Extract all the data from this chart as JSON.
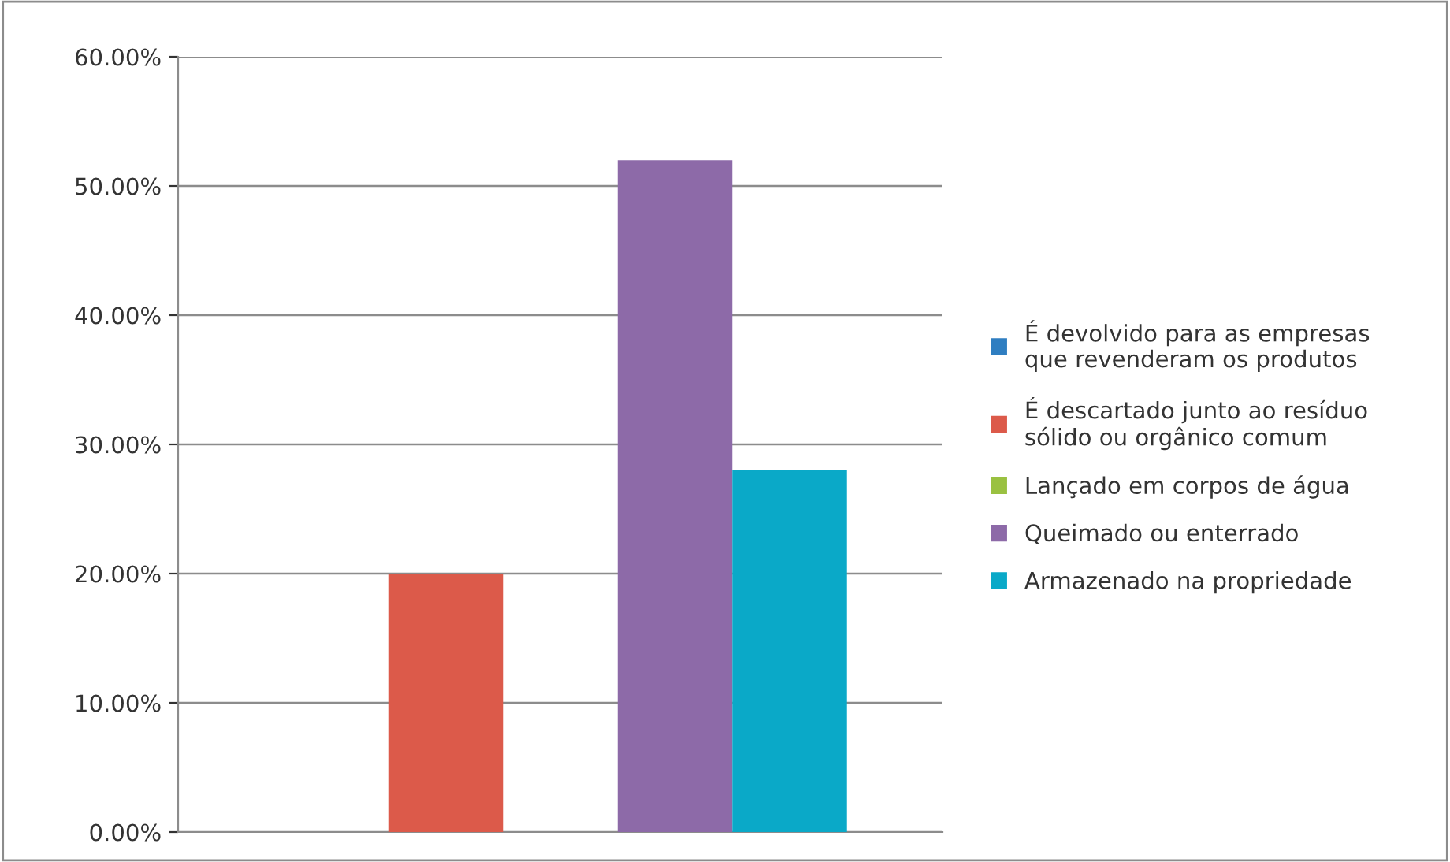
{
  "chart_data": {
    "type": "bar",
    "categories": [
      null
    ],
    "series": [
      {
        "name": "É devolvido para as empresas\nque revenderam os produtos",
        "color": "#2f7ec1",
        "values": [
          0
        ]
      },
      {
        "name": "É descartado junto ao resíduo\nsólido ou orgânico comum",
        "color": "#dc5a4a",
        "values": [
          20
        ]
      },
      {
        "name": "Lançado em corpos de água",
        "color": "#9ac141",
        "values": [
          0
        ]
      },
      {
        "name": "Queimado ou enterrado",
        "color": "#8d6aa8",
        "values": [
          52
        ]
      },
      {
        "name": "Armazenado na propriedade",
        "color": "#0aa9c8",
        "values": [
          28
        ]
      }
    ],
    "ylim": [
      0,
      60
    ],
    "yticks": [
      {
        "value": 0,
        "label": "0.00%"
      },
      {
        "value": 10,
        "label": "10.00%"
      },
      {
        "value": 20,
        "label": "20.00%"
      },
      {
        "value": 30,
        "label": "30.00%"
      },
      {
        "value": 40,
        "label": "40.00%"
      },
      {
        "value": 50,
        "label": "50.00%"
      },
      {
        "value": 60,
        "label": "60.00%"
      }
    ],
    "grid": "y",
    "legend": "right"
  }
}
